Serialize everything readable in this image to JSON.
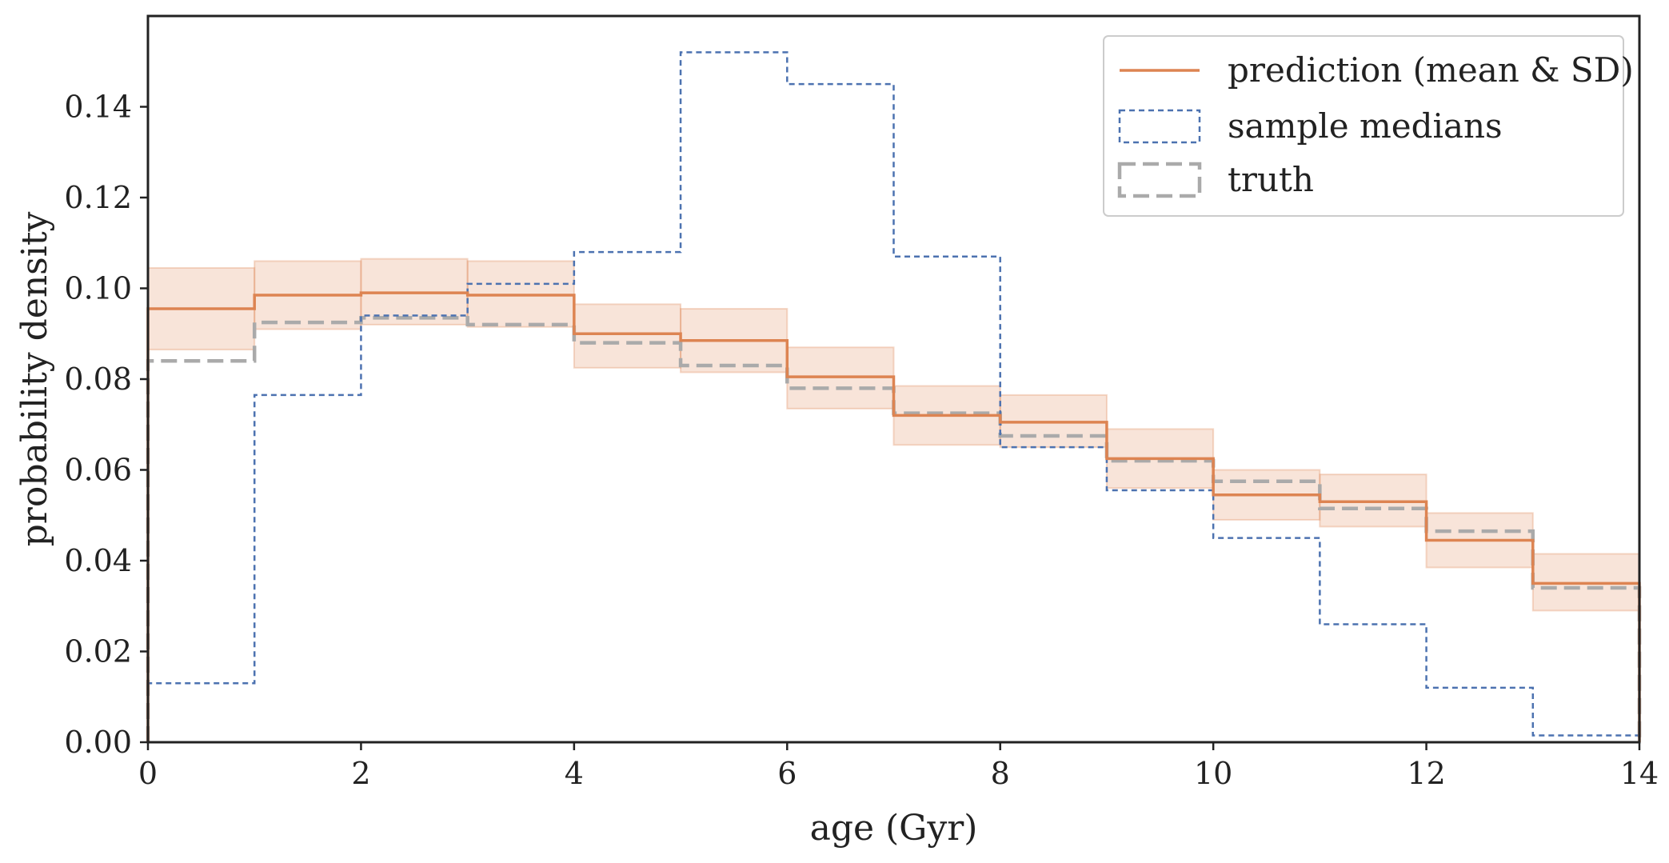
{
  "chart_data": {
    "type": "step",
    "xlabel": "age (Gyr)",
    "ylabel": "probability density",
    "xlim": [
      0,
      14
    ],
    "ylim": [
      0,
      0.16
    ],
    "bin_edges": [
      0,
      1,
      2,
      3,
      4,
      5,
      6,
      7,
      8,
      9,
      10,
      11,
      12,
      13,
      14
    ],
    "x_ticks": [
      0,
      2,
      4,
      6,
      8,
      10,
      12,
      14
    ],
    "x_tick_labels": [
      "0",
      "2",
      "4",
      "6",
      "8",
      "10",
      "12",
      "14"
    ],
    "y_ticks": [
      0,
      0.02,
      0.04,
      0.06,
      0.08,
      0.1,
      0.12,
      0.14
    ],
    "y_tick_labels": [
      "0.00",
      "0.02",
      "0.04",
      "0.06",
      "0.08",
      "0.10",
      "0.12",
      "0.14"
    ],
    "grid": false,
    "legend_position": "top-right",
    "series": [
      {
        "name": "prediction (mean & SD)",
        "style": "solid",
        "color": "#dd8452",
        "values": [
          0.0955,
          0.0985,
          0.099,
          0.0985,
          0.09,
          0.0885,
          0.0805,
          0.072,
          0.0705,
          0.0625,
          0.0545,
          0.053,
          0.0445,
          0.035
        ],
        "sd_lower": [
          0.0865,
          0.091,
          0.092,
          0.0915,
          0.0825,
          0.0815,
          0.0735,
          0.0655,
          0.065,
          0.056,
          0.049,
          0.0475,
          0.0385,
          0.029
        ],
        "sd_upper": [
          0.1045,
          0.106,
          0.1065,
          0.106,
          0.0965,
          0.0955,
          0.087,
          0.0785,
          0.0765,
          0.069,
          0.06,
          0.059,
          0.0505,
          0.0415
        ]
      },
      {
        "name": "sample medians",
        "style": "dashed",
        "color": "#4c72b0",
        "values": [
          0.013,
          0.0765,
          0.094,
          0.101,
          0.108,
          0.152,
          0.145,
          0.107,
          0.065,
          0.0555,
          0.045,
          0.026,
          0.012,
          0.0015
        ]
      },
      {
        "name": "truth",
        "style": "dashed-thick",
        "color": "#aaaaaa",
        "values": [
          0.084,
          0.0925,
          0.0935,
          0.092,
          0.088,
          0.083,
          0.078,
          0.0725,
          0.0675,
          0.062,
          0.0575,
          0.0515,
          0.0465,
          0.034
        ]
      }
    ]
  }
}
